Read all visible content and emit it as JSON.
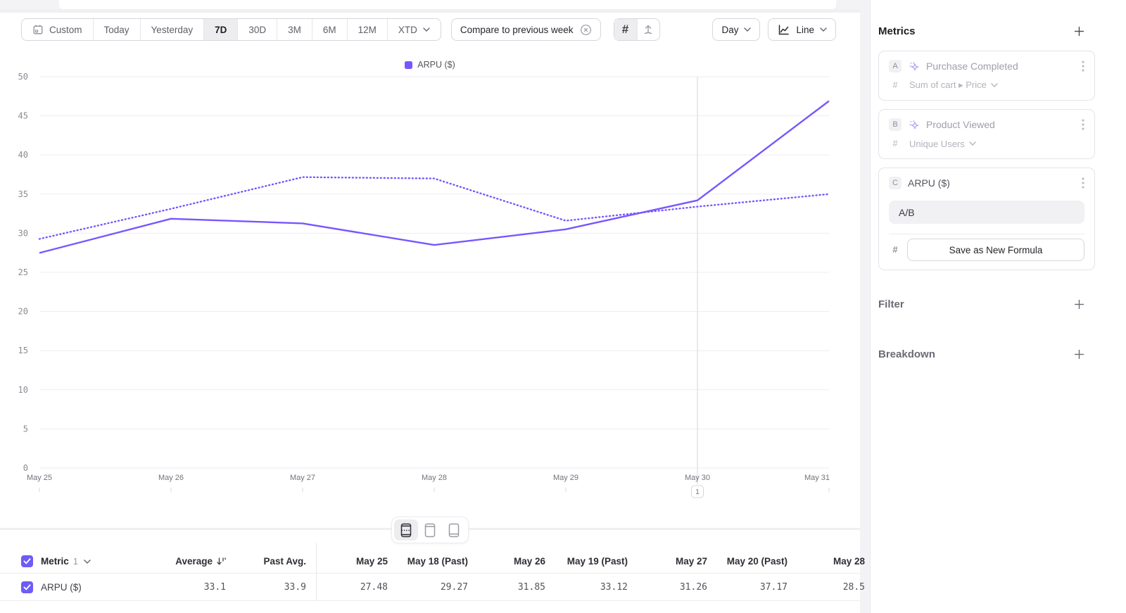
{
  "toolbar": {
    "date_ranges": [
      "Custom",
      "Today",
      "Yesterday",
      "7D",
      "30D",
      "3M",
      "6M",
      "12M",
      "XTD"
    ],
    "selected_range": "7D",
    "compare_chip": "Compare to previous week",
    "granularity": "Day",
    "chart_type": "Line"
  },
  "icons": {
    "hash": "#"
  },
  "legend": {
    "label": "ARPU ($)",
    "color": "#7856ff"
  },
  "chart_data": {
    "type": "line",
    "title": "",
    "xlabel": "",
    "ylabel": "",
    "x": [
      "May 25",
      "May 26",
      "May 27",
      "May 28",
      "May 29",
      "May 30",
      "May 31"
    ],
    "series": [
      {
        "name": "ARPU ($)",
        "style": "solid",
        "values": [
          27.48,
          31.85,
          31.26,
          28.5,
          30.5,
          34.2,
          46.9
        ]
      },
      {
        "name": "ARPU ($) previous week",
        "style": "dotted",
        "values": [
          29.27,
          33.12,
          37.17,
          37.0,
          31.6,
          33.4,
          35.0
        ]
      }
    ],
    "color": "#7856ff",
    "ylim": [
      0,
      50
    ],
    "yticks": [
      0,
      5,
      10,
      15,
      20,
      25,
      30,
      35,
      40,
      45,
      50
    ],
    "grid": true,
    "legend_position": "top-center",
    "annotation": {
      "label": "1",
      "x": "May 30"
    }
  },
  "sidebar": {
    "metrics_title": "Metrics",
    "metrics": [
      {
        "letter": "A",
        "name": "Purchase Completed",
        "aggregation": "Sum of cart ▸ Price",
        "disabled": true
      },
      {
        "letter": "B",
        "name": "Product Viewed",
        "aggregation": "Unique Users",
        "disabled": true
      },
      {
        "letter": "C",
        "name": "ARPU ($)",
        "formula": "A/B",
        "save_button": "Save as New Formula"
      }
    ],
    "filter_title": "Filter",
    "breakdown_title": "Breakdown"
  },
  "table": {
    "metric_label": "Metric",
    "metric_count": "1",
    "columns": [
      "Average",
      "Past Avg.",
      "May 25",
      "May 18 (Past)",
      "May 26",
      "May 19 (Past)",
      "May 27",
      "May 20 (Past)",
      "May 28"
    ],
    "rows": [
      {
        "name": "ARPU ($)",
        "values": [
          "33.1",
          "33.9",
          "27.48",
          "29.27",
          "31.85",
          "33.12",
          "31.26",
          "37.17",
          "28.5"
        ]
      }
    ]
  }
}
